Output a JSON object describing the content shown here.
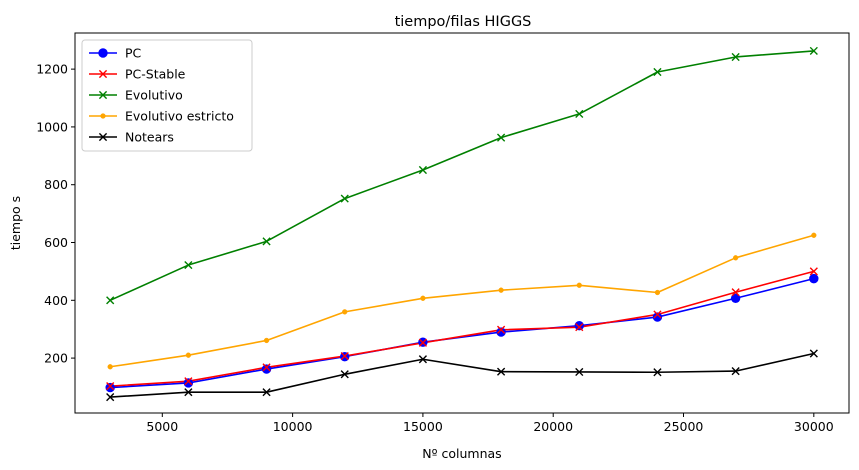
{
  "chart_data": {
    "type": "line",
    "title": "tiempo/filas HIGGS",
    "xlabel": "Nº columnas",
    "ylabel": "tiempo s",
    "xlim": [
      1650,
      31350
    ],
    "ylim": [
      10,
      1325
    ],
    "xticks": [
      5000,
      10000,
      15000,
      20000,
      25000,
      30000
    ],
    "yticks": [
      200,
      400,
      600,
      800,
      1000,
      1200
    ],
    "x": [
      3000,
      6000,
      9000,
      12000,
      15000,
      18000,
      21000,
      24000,
      27000,
      30000
    ],
    "legend_position": "upper-left",
    "grid": false,
    "series": [
      {
        "name": "PC",
        "color": "#0000ff",
        "marker": "circle",
        "values": [
          98,
          114,
          162,
          205,
          255,
          290,
          312,
          342,
          407,
          475
        ]
      },
      {
        "name": "PC-Stable",
        "color": "#ff0000",
        "marker": "x",
        "values": [
          103,
          120,
          168,
          207,
          253,
          298,
          307,
          351,
          428,
          500
        ]
      },
      {
        "name": "Evolutivo",
        "color": "#008000",
        "marker": "x",
        "values": [
          400,
          522,
          604,
          752,
          851,
          963,
          1045,
          1190,
          1242,
          1263
        ]
      },
      {
        "name": "Evolutivo estricto",
        "color": "#ffa500",
        "marker": "dot",
        "values": [
          170,
          210,
          261,
          360,
          407,
          435,
          452,
          427,
          547,
          625
        ]
      },
      {
        "name": "Notears",
        "color": "#000000",
        "marker": "x",
        "values": [
          65,
          82,
          82,
          144,
          196,
          153,
          152,
          151,
          155,
          216
        ]
      }
    ]
  }
}
